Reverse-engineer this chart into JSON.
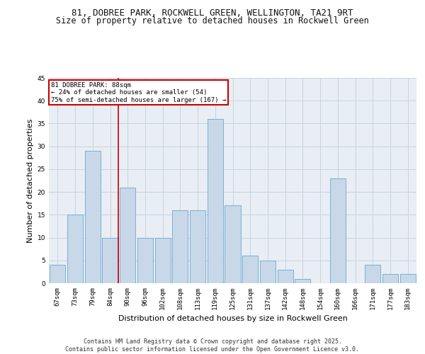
{
  "title_line1": "81, DOBREE PARK, ROCKWELL GREEN, WELLINGTON, TA21 9RT",
  "title_line2": "Size of property relative to detached houses in Rockwell Green",
  "xlabel": "Distribution of detached houses by size in Rockwell Green",
  "ylabel": "Number of detached properties",
  "categories": [
    "67sqm",
    "73sqm",
    "79sqm",
    "84sqm",
    "90sqm",
    "96sqm",
    "102sqm",
    "108sqm",
    "113sqm",
    "119sqm",
    "125sqm",
    "131sqm",
    "137sqm",
    "142sqm",
    "148sqm",
    "154sqm",
    "160sqm",
    "166sqm",
    "171sqm",
    "177sqm",
    "183sqm"
  ],
  "values": [
    4,
    15,
    29,
    10,
    21,
    10,
    10,
    16,
    16,
    36,
    17,
    6,
    5,
    3,
    1,
    0,
    23,
    0,
    4,
    2,
    2
  ],
  "bar_color": "#c8d8e8",
  "bar_edge_color": "#7bafd4",
  "annotation_text_line1": "81 DOBREE PARK: 88sqm",
  "annotation_text_line2": "← 24% of detached houses are smaller (54)",
  "annotation_text_line3": "75% of semi-detached houses are larger (167) →",
  "annotation_box_color": "#ffffff",
  "annotation_box_edge_color": "#cc0000",
  "vline_color": "#cc0000",
  "grid_color": "#c8d4e0",
  "background_color": "#e8eef4",
  "fig_background": "#ffffff",
  "ylim": [
    0,
    45
  ],
  "yticks": [
    0,
    5,
    10,
    15,
    20,
    25,
    30,
    35,
    40,
    45
  ],
  "footer": "Contains HM Land Registry data © Crown copyright and database right 2025.\nContains public sector information licensed under the Open Government Licence v3.0.",
  "title_fontsize": 9,
  "subtitle_fontsize": 8.5,
  "axis_label_fontsize": 8,
  "tick_fontsize": 6.5,
  "annotation_fontsize": 6.5,
  "footer_fontsize": 6
}
